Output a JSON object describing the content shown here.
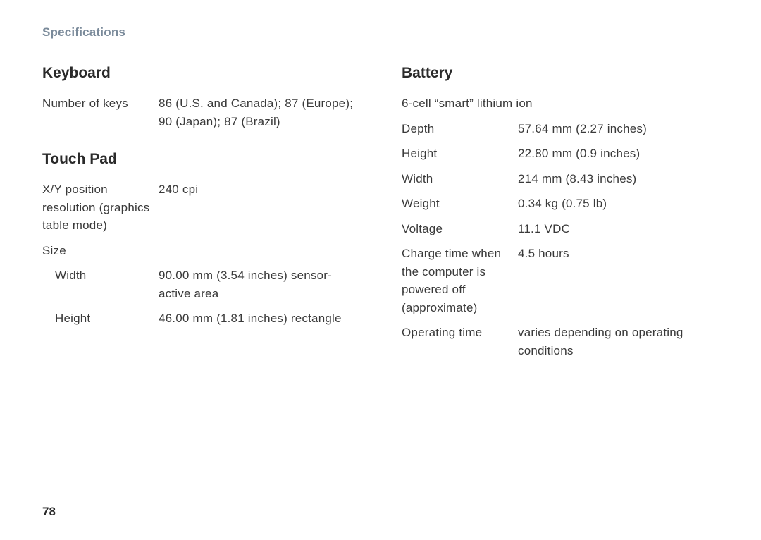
{
  "header": "Specifications",
  "pageNumber": "78",
  "left": {
    "keyboard": {
      "title": "Keyboard",
      "rows": [
        {
          "label": "Number of keys",
          "value": "86 (U.S. and Canada); 87 (Europe); 90 (Japan); 87 (Brazil)"
        }
      ]
    },
    "touchpad": {
      "title": "Touch Pad",
      "rows": [
        {
          "label": "X/Y position resolution (graphics table mode)",
          "value": "240 cpi"
        }
      ],
      "sizeLabel": "Size",
      "sizeRows": [
        {
          "label": "Width",
          "value": "90.00 mm (3.54 inches) sensor-active area"
        },
        {
          "label": "Height",
          "value": "46.00 mm (1.81 inches) rectangle"
        }
      ]
    }
  },
  "right": {
    "battery": {
      "title": "Battery",
      "subtitle": "6-cell “smart” lithium ion",
      "rows": [
        {
          "label": "Depth",
          "value": "57.64 mm (2.27 inches)"
        },
        {
          "label": "Height",
          "value": "22.80 mm (0.9 inches)"
        },
        {
          "label": "Width",
          "value": "214 mm (8.43 inches)"
        },
        {
          "label": "Weight",
          "value": "0.34 kg (0.75 lb)"
        },
        {
          "label": "Voltage",
          "value": "11.1 VDC"
        },
        {
          "label": "Charge time when the computer is powered off (approximate)",
          "value": "4.5 hours"
        },
        {
          "label": "Operating time",
          "value": "varies depending on operating conditions"
        }
      ]
    }
  }
}
